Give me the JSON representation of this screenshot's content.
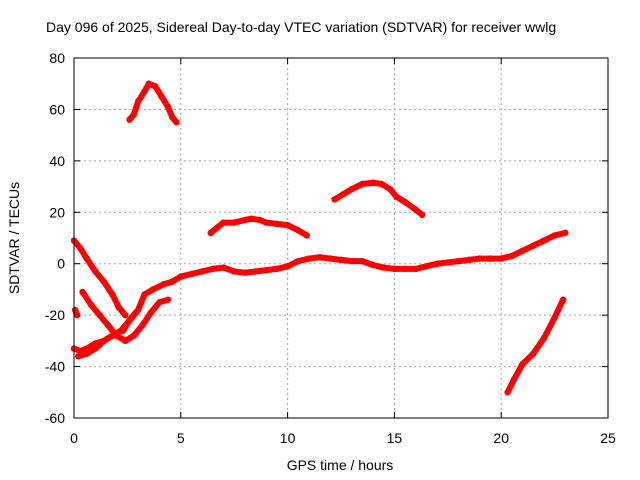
{
  "chart_data": {
    "type": "scatter",
    "title": "Day 096 of 2025, Sidereal Day-to-day VTEC variation (SDTVAR) for receiver wwlg",
    "xlabel": "GPS time / hours",
    "ylabel": "SDTVAR / TECUs",
    "xlim": [
      0,
      25
    ],
    "ylim": [
      -60,
      80
    ],
    "xticks": [
      "0",
      "5",
      "10",
      "15",
      "20",
      "25"
    ],
    "yticks": [
      "-60",
      "-40",
      "-20",
      "0",
      "20",
      "40",
      "60",
      "80"
    ],
    "grid": true,
    "series_color": "#ff0000",
    "series": [
      {
        "name": "arc-main",
        "points": [
          [
            0.0,
            -33
          ],
          [
            0.3,
            -34
          ],
          [
            0.6,
            -33
          ],
          [
            1.0,
            -31
          ],
          [
            1.4,
            -30
          ],
          [
            1.8,
            -28
          ],
          [
            2.0,
            -27
          ],
          [
            2.3,
            -26
          ],
          [
            2.6,
            -22
          ],
          [
            3.0,
            -18
          ],
          [
            3.3,
            -12
          ],
          [
            3.7,
            -10
          ],
          [
            4.2,
            -8
          ],
          [
            4.6,
            -7
          ],
          [
            5.0,
            -5
          ],
          [
            5.5,
            -4
          ],
          [
            6.0,
            -3
          ],
          [
            6.5,
            -2
          ],
          [
            7.0,
            -1.5
          ],
          [
            7.5,
            -3
          ],
          [
            8.0,
            -3.5
          ],
          [
            8.5,
            -3
          ],
          [
            9.0,
            -2.5
          ],
          [
            9.5,
            -2
          ],
          [
            10.0,
            -1
          ],
          [
            10.5,
            1
          ],
          [
            11.0,
            2
          ],
          [
            11.5,
            2.5
          ],
          [
            12.0,
            2
          ],
          [
            12.5,
            1.5
          ],
          [
            13.0,
            1
          ],
          [
            13.5,
            1
          ],
          [
            14.0,
            -0.5
          ],
          [
            14.5,
            -1.5
          ],
          [
            15.0,
            -2
          ],
          [
            15.5,
            -2
          ],
          [
            16.0,
            -2
          ],
          [
            16.5,
            -1
          ],
          [
            17.0,
            0
          ],
          [
            17.5,
            0.5
          ],
          [
            18.0,
            1
          ],
          [
            18.5,
            1.5
          ],
          [
            19.0,
            2
          ],
          [
            19.5,
            2
          ],
          [
            20.0,
            2
          ],
          [
            20.5,
            3
          ],
          [
            21.0,
            5
          ],
          [
            21.5,
            7
          ],
          [
            22.0,
            9
          ],
          [
            22.5,
            11
          ],
          [
            23.0,
            12
          ]
        ]
      },
      {
        "name": "arc-early-down",
        "points": [
          [
            0.0,
            9
          ],
          [
            0.3,
            6
          ],
          [
            0.6,
            2
          ],
          [
            1.0,
            -3
          ],
          [
            1.4,
            -7
          ],
          [
            1.8,
            -12
          ],
          [
            2.1,
            -17
          ],
          [
            2.4,
            -20
          ]
        ]
      },
      {
        "name": "arc-early-low",
        "points": [
          [
            0.2,
            -36
          ],
          [
            0.6,
            -35
          ],
          [
            1.0,
            -33
          ],
          [
            1.4,
            -30
          ],
          [
            1.8,
            -28
          ],
          [
            2.2,
            -26
          ],
          [
            2.6,
            -22
          ],
          [
            2.9,
            -19
          ]
        ]
      },
      {
        "name": "arc-cross",
        "points": [
          [
            0.4,
            -11
          ],
          [
            0.8,
            -16
          ],
          [
            1.2,
            -20
          ],
          [
            1.6,
            -24
          ],
          [
            2.0,
            -28
          ],
          [
            2.4,
            -30
          ],
          [
            2.8,
            -28
          ],
          [
            3.2,
            -24
          ],
          [
            3.6,
            -19
          ],
          [
            4.0,
            -15
          ],
          [
            4.4,
            -14
          ]
        ]
      },
      {
        "name": "arc-dot",
        "points": [
          [
            0.05,
            -18
          ],
          [
            0.15,
            -20
          ]
        ]
      },
      {
        "name": "arc-peak",
        "points": [
          [
            2.6,
            56
          ],
          [
            2.8,
            58
          ],
          [
            3.0,
            63
          ],
          [
            3.3,
            67
          ],
          [
            3.5,
            70
          ],
          [
            3.8,
            69
          ],
          [
            4.1,
            65
          ],
          [
            4.4,
            61
          ],
          [
            4.6,
            57
          ],
          [
            4.8,
            55
          ]
        ]
      },
      {
        "name": "arc-hump",
        "points": [
          [
            6.4,
            12
          ],
          [
            6.7,
            14
          ],
          [
            7.0,
            16
          ],
          [
            7.5,
            16
          ],
          [
            8.0,
            17
          ],
          [
            8.3,
            17.5
          ],
          [
            8.7,
            17
          ],
          [
            9.0,
            16
          ],
          [
            9.5,
            15.5
          ],
          [
            10.0,
            15
          ],
          [
            10.5,
            13
          ],
          [
            10.9,
            11
          ]
        ]
      },
      {
        "name": "arc-mid-high",
        "points": [
          [
            12.2,
            25
          ],
          [
            12.6,
            27
          ],
          [
            13.0,
            29
          ],
          [
            13.5,
            31
          ],
          [
            14.0,
            31.5
          ],
          [
            14.4,
            31
          ],
          [
            14.8,
            29
          ],
          [
            15.1,
            26
          ],
          [
            15.5,
            24
          ],
          [
            16.0,
            21
          ],
          [
            16.3,
            19
          ]
        ]
      },
      {
        "name": "arc-late-rise",
        "points": [
          [
            20.3,
            -50
          ],
          [
            20.6,
            -45
          ],
          [
            21.0,
            -39
          ],
          [
            21.5,
            -35
          ],
          [
            22.0,
            -29
          ],
          [
            22.5,
            -21
          ],
          [
            22.9,
            -14
          ]
        ]
      }
    ]
  }
}
